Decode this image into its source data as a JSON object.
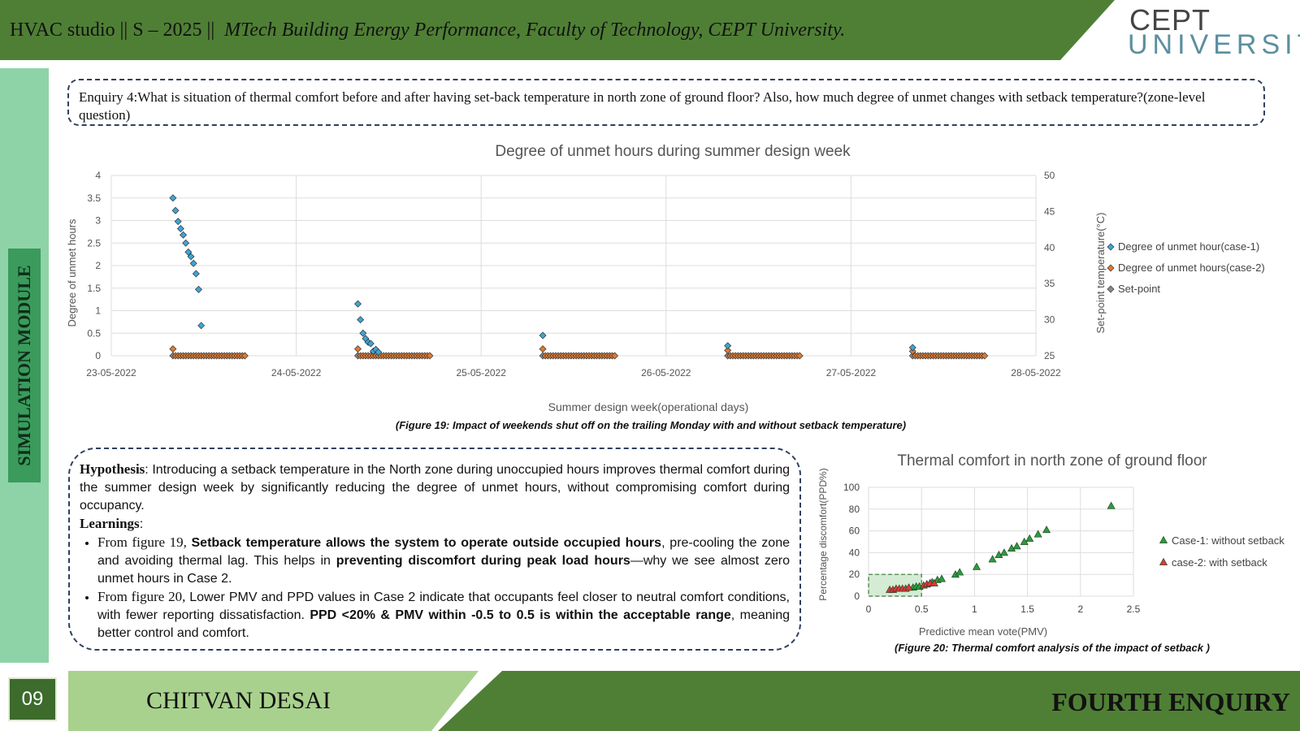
{
  "header": {
    "prefix": "HVAC studio || S – 2025 ||",
    "subtitle": "MTech Building Energy Performance, Faculty of Technology, CEPT University.",
    "logo_line1": "CEPT",
    "logo_line2": "UNIVERSITY",
    "color": "#4f7f35"
  },
  "sidebar": {
    "label": "SIMULATION MODULE"
  },
  "enquiry": {
    "text": "Enquiry 4:What is situation of thermal comfort before and after having set-back temperature in north zone of ground floor? Also, how much degree of unmet changes with setback temperature?(zone-level question)"
  },
  "figure19_caption": "(Figure 19: Impact of weekends shut off on the trailing Monday with and without setback temperature)",
  "figure20_caption": "(Figure 20: Thermal comfort analysis of the impact of setback )",
  "hypothesis": {
    "heading": "Hypothesis",
    "text": ": Introducing a setback temperature in the North zone during unoccupied hours improves thermal comfort during the summer design week by significantly reducing the degree of unmet hours, without compromising comfort during occupancy.",
    "learnings_heading": "Learnings",
    "learnings_colon": ":",
    "bullet1": {
      "lead": "From figure 19, ",
      "bold1": "Setback temperature allows the system to operate outside occupied hours",
      "mid": ", pre-cooling the zone and avoiding thermal lag. This helps in ",
      "bold2": "preventing discomfort during peak load hours",
      "end": "—why we see almost zero unmet hours in Case 2."
    },
    "bullet2": {
      "lead": "From figure 20, ",
      "text": "Lower PMV and PPD values in Case 2 indicate that occupants feel closer to neutral comfort conditions, with fewer reporting dissatisfaction. ",
      "bold": "PPD <20% & PMV within -0.5 to 0.5 is within the acceptable range",
      "end": ", meaning better control and comfort."
    }
  },
  "footer": {
    "page_number": "09",
    "name": "CHITVAN DESAI",
    "right_label": "FOURTH  ENQUIRY"
  },
  "chart_data": [
    {
      "type": "scatter",
      "title": "Degree of unmet hours during summer design week",
      "xlabel": "Summer design week(operational days)",
      "ylabel": "Degree of unmet hours",
      "y2label": "Set-point temperature(°C)",
      "x_tick_labels": [
        "23-05-2022",
        "24-05-2022",
        "25-05-2022",
        "26-05-2022",
        "27-05-2022",
        "28-05-2022"
      ],
      "xlim": [
        "23-05-2022 00:00",
        "28-05-2022 00:00"
      ],
      "ylim": [
        0,
        4
      ],
      "yticks": [
        "4",
        "3.5",
        "3",
        "2.5",
        "2",
        "1.5",
        "1",
        "0.5",
        "0"
      ],
      "y2lim": [
        25,
        50
      ],
      "y2ticks": [
        "50",
        "45",
        "40",
        "35",
        "30",
        "25"
      ],
      "legend_position": "right",
      "grid": true,
      "series": [
        {
          "name": "Degree of unmet hour(case-1)",
          "color": "#3da5d6",
          "points": [
            [
              "2022-05-23 08:00",
              3.5
            ],
            [
              "2022-05-23 08:20",
              3.22
            ],
            [
              "2022-05-23 08:40",
              2.98
            ],
            [
              "2022-05-23 09:00",
              2.82
            ],
            [
              "2022-05-23 09:20",
              2.68
            ],
            [
              "2022-05-23 09:40",
              2.5
            ],
            [
              "2022-05-23 10:00",
              2.3
            ],
            [
              "2022-05-23 10:20",
              2.2
            ],
            [
              "2022-05-23 10:40",
              2.05
            ],
            [
              "2022-05-23 11:00",
              1.82
            ],
            [
              "2022-05-23 11:20",
              1.47
            ],
            [
              "2022-05-23 11:40",
              0.67
            ],
            [
              "2022-05-24 08:00",
              1.15
            ],
            [
              "2022-05-24 08:20",
              0.8
            ],
            [
              "2022-05-24 08:40",
              0.5
            ],
            [
              "2022-05-24 09:00",
              0.38
            ],
            [
              "2022-05-24 09:20",
              0.3
            ],
            [
              "2022-05-24 09:40",
              0.27
            ],
            [
              "2022-05-24 10:00",
              0.1
            ],
            [
              "2022-05-24 10:20",
              0.14
            ],
            [
              "2022-05-24 10:40",
              0.08
            ],
            [
              "2022-05-25 08:00",
              0.45
            ],
            [
              "2022-05-26 08:00",
              0.22
            ],
            [
              "2022-05-27 08:00",
              0.18
            ]
          ]
        },
        {
          "name": "Degree of unmet hours(case-2)",
          "color": "#e07a30",
          "points": [
            [
              "2022-05-23 08:00",
              0.15
            ],
            [
              "2022-05-24 08:00",
              0.15
            ],
            [
              "2022-05-25 08:00",
              0.15
            ],
            [
              "2022-05-26 08:00",
              0.12
            ],
            [
              "2022-05-27 08:00",
              0.1
            ]
          ],
          "zero_runs": [
            [
              "2022-05-23 08:20",
              "2022-05-23 17:20"
            ],
            [
              "2022-05-24 08:20",
              "2022-05-24 17:20"
            ],
            [
              "2022-05-25 08:20",
              "2022-05-25 17:20"
            ],
            [
              "2022-05-26 08:20",
              "2022-05-26 17:20"
            ],
            [
              "2022-05-27 08:20",
              "2022-05-27 17:20"
            ]
          ]
        },
        {
          "name": "Set-point",
          "color": "#8a8a8a",
          "axis": "secondary",
          "points": [
            [
              "2022-05-23 08:00",
              25
            ],
            [
              "2022-05-24 08:00",
              25
            ],
            [
              "2022-05-25 08:00",
              25
            ],
            [
              "2022-05-26 08:00",
              25
            ],
            [
              "2022-05-27 08:00",
              25
            ]
          ]
        }
      ]
    },
    {
      "type": "scatter",
      "title": "Thermal comfort in north zone of ground floor",
      "xlabel": "Predictive mean vote(PMV)",
      "ylabel": "Percentage discomfort(PPD%)",
      "xlim": [
        0,
        2.5
      ],
      "xticks": [
        "0",
        "0.5",
        "1",
        "1.5",
        "2",
        "2.5"
      ],
      "ylim": [
        0,
        100
      ],
      "yticks": [
        "100",
        "80",
        "60",
        "40",
        "20",
        "0"
      ],
      "legend_position": "right",
      "grid": true,
      "comfort_zone": {
        "pmv": [
          0,
          0.5
        ],
        "ppd": [
          0,
          20
        ],
        "color": "#b8e0b8"
      },
      "series": [
        {
          "name": "Case-1: without setback",
          "color": "#2e9a3e",
          "points": [
            [
              0.42,
              8
            ],
            [
              0.45,
              9
            ],
            [
              0.48,
              9
            ],
            [
              0.55,
              11
            ],
            [
              0.6,
              13
            ],
            [
              0.65,
              15
            ],
            [
              0.69,
              16
            ],
            [
              0.82,
              20
            ],
            [
              0.86,
              22
            ],
            [
              1.02,
              27
            ],
            [
              1.17,
              34
            ],
            [
              1.23,
              38
            ],
            [
              1.28,
              40
            ],
            [
              1.35,
              44
            ],
            [
              1.4,
              46
            ],
            [
              1.47,
              50
            ],
            [
              1.52,
              53
            ],
            [
              1.6,
              57
            ],
            [
              1.68,
              61
            ],
            [
              2.29,
              83
            ]
          ]
        },
        {
          "name": "case-2: with setback",
          "color": "#d93a3a",
          "points": [
            [
              0.2,
              6
            ],
            [
              0.23,
              6
            ],
            [
              0.26,
              7
            ],
            [
              0.29,
              7
            ],
            [
              0.32,
              7
            ],
            [
              0.35,
              7
            ],
            [
              0.38,
              8
            ],
            [
              0.52,
              10
            ],
            [
              0.55,
              11
            ],
            [
              0.58,
              12
            ],
            [
              0.62,
              12
            ]
          ]
        }
      ]
    }
  ]
}
